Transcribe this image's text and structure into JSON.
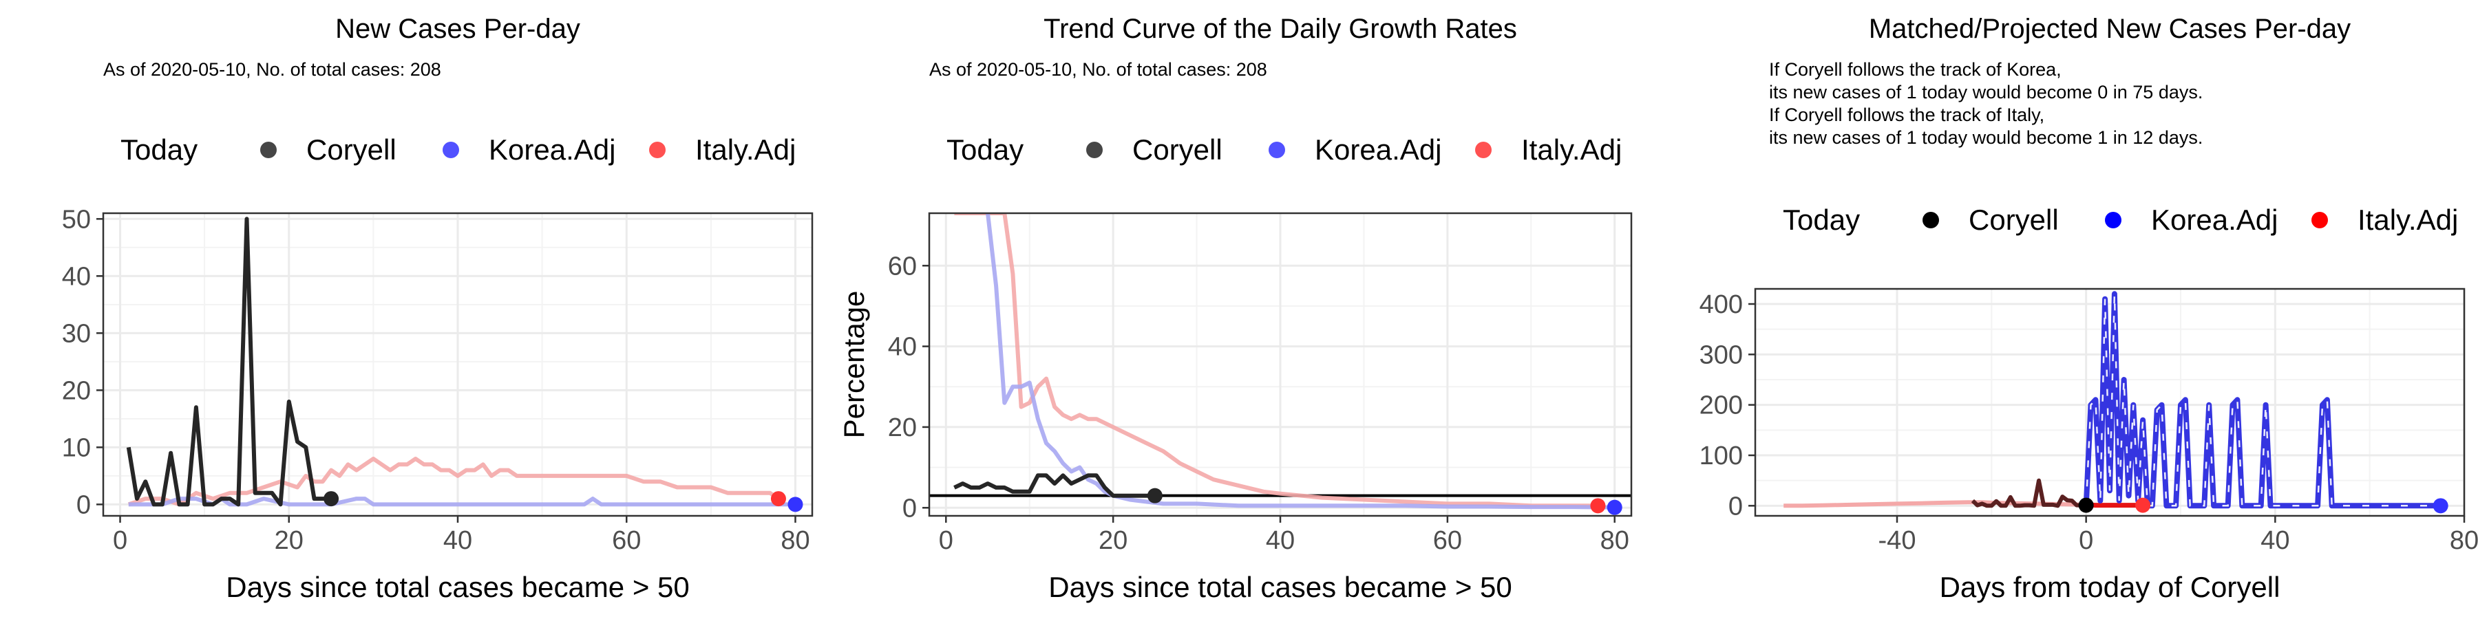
{
  "colors": {
    "coryell": "#262626",
    "korea_line": "#a7a7f2",
    "italy_line": "#f4a8a8",
    "korea_dot": "#3333ff",
    "italy_dot": "#ff3333",
    "korea_proj": "#3535e0",
    "italy_proj": "#e61414",
    "coryell_proj": "#5a2020",
    "grid": "#ebebeb"
  },
  "legend": {
    "today": "Today",
    "coryell": "Coryell",
    "korea": "Korea.Adj",
    "italy": "Italy.Adj"
  },
  "chart_data": [
    {
      "type": "line",
      "title": "New Cases Per-day",
      "subtitle": "As of 2020-05-10, No. of total cases: 208",
      "xlabel": "Days since total cases became > 50",
      "ylabel": "",
      "xlim": [
        -2,
        82
      ],
      "ylim": [
        -2,
        51
      ],
      "xticks": [
        0,
        20,
        40,
        60,
        80
      ],
      "yticks": [
        0,
        10,
        20,
        30,
        40,
        50
      ],
      "grid": true,
      "legend_position": "top",
      "series": [
        {
          "name": "Italy.Adj",
          "x": [
            1,
            3,
            5,
            7,
            9,
            11,
            13,
            15,
            17,
            19,
            21,
            22,
            23,
            24,
            25,
            26,
            27,
            28,
            29,
            30,
            31,
            32,
            33,
            34,
            35,
            36,
            37,
            38,
            39,
            40,
            41,
            42,
            43,
            44,
            45,
            46,
            47,
            48,
            50,
            52,
            54,
            56,
            58,
            60,
            62,
            64,
            66,
            68,
            70,
            72,
            74,
            76,
            77,
            78
          ],
          "y": [
            0,
            1,
            1,
            0,
            2,
            1,
            2,
            2,
            3,
            4,
            3,
            5,
            4,
            4,
            6,
            5,
            7,
            6,
            7,
            8,
            7,
            6,
            7,
            7,
            8,
            7,
            7,
            6,
            6,
            5,
            6,
            6,
            7,
            5,
            6,
            6,
            5,
            5,
            5,
            5,
            5,
            5,
            5,
            5,
            4,
            4,
            3,
            3,
            3,
            2,
            2,
            2,
            2,
            1
          ]
        },
        {
          "name": "Korea.Adj",
          "x": [
            1,
            5,
            7,
            9,
            11,
            12,
            13,
            15,
            17,
            20,
            25,
            28,
            29,
            30,
            35,
            40,
            45,
            50,
            55,
            56,
            57,
            60,
            65,
            70,
            75,
            78,
            80
          ],
          "y": [
            0,
            0,
            1,
            1,
            0,
            1,
            0,
            0,
            1,
            0,
            0,
            1,
            1,
            0,
            0,
            0,
            0,
            0,
            0,
            1,
            0,
            0,
            0,
            0,
            0,
            0,
            0
          ]
        },
        {
          "name": "Coryell",
          "x": [
            1,
            2,
            3,
            4,
            5,
            6,
            7,
            8,
            9,
            10,
            11,
            12,
            13,
            14,
            15,
            16,
            17,
            18,
            19,
            20,
            21,
            22,
            23,
            24,
            25
          ],
          "y": [
            10,
            1,
            4,
            0,
            0,
            9,
            0,
            0,
            17,
            0,
            0,
            1,
            1,
            0,
            50,
            2,
            2,
            2,
            0,
            18,
            11,
            10,
            1,
            1,
            1
          ]
        }
      ],
      "today_points": [
        {
          "name": "Coryell",
          "x": 25,
          "y": 1
        },
        {
          "name": "Italy.Adj",
          "x": 78,
          "y": 1
        },
        {
          "name": "Korea.Adj",
          "x": 80,
          "y": 0
        }
      ]
    },
    {
      "type": "line",
      "title": "Trend Curve of the Daily Growth Rates",
      "subtitle": "As of 2020-05-10, No. of total cases: 208",
      "xlabel": "Days since total cases became > 50",
      "ylabel": "Percentage",
      "xlim": [
        -2,
        82
      ],
      "ylim": [
        -2,
        73
      ],
      "xticks": [
        0,
        20,
        40,
        60,
        80
      ],
      "yticks": [
        0,
        20,
        40,
        60
      ],
      "hline": 3,
      "grid": true,
      "legend_position": "top",
      "series": [
        {
          "name": "Italy.Adj",
          "x": [
            1,
            6,
            7,
            8,
            9,
            10,
            11,
            12,
            13,
            14,
            15,
            16,
            17,
            18,
            19,
            20,
            22,
            24,
            26,
            28,
            30,
            32,
            34,
            36,
            38,
            40,
            45,
            50,
            55,
            60,
            65,
            70,
            75,
            78
          ],
          "y": [
            73,
            73,
            73,
            58,
            25,
            26,
            30,
            32,
            25,
            23,
            22,
            23,
            22,
            22,
            21,
            20,
            18,
            16,
            14,
            11,
            9,
            7,
            6,
            5,
            4,
            3.5,
            2.5,
            2,
            1.5,
            1,
            1,
            0.5,
            0.5,
            0.5
          ]
        },
        {
          "name": "Korea.Adj",
          "x": [
            5,
            6,
            7,
            8,
            9,
            10,
            11,
            12,
            13,
            14,
            15,
            16,
            17,
            18,
            19,
            20,
            22,
            24,
            26,
            28,
            30,
            35,
            40,
            45,
            50,
            55,
            60,
            65,
            70,
            75,
            80
          ],
          "y": [
            73,
            55,
            26,
            30,
            30,
            31,
            22,
            16,
            14,
            11,
            9,
            10,
            7,
            6,
            4,
            3,
            2,
            1.5,
            1,
            1,
            1,
            0.5,
            0.5,
            0.5,
            0.5,
            0.5,
            0.3,
            0.3,
            0.2,
            0.2,
            0.1
          ]
        },
        {
          "name": "Coryell",
          "x": [
            1,
            2,
            3,
            4,
            5,
            6,
            7,
            8,
            9,
            10,
            11,
            12,
            13,
            14,
            15,
            16,
            17,
            18,
            19,
            20,
            21,
            22,
            23,
            24,
            25
          ],
          "y": [
            5,
            6,
            5,
            5,
            6,
            5,
            5,
            4,
            4,
            4,
            8,
            8,
            6,
            8,
            6,
            7,
            8,
            8,
            5,
            3,
            3,
            3,
            3,
            3,
            3
          ]
        }
      ],
      "today_points": [
        {
          "name": "Coryell",
          "x": 25,
          "y": 3
        },
        {
          "name": "Italy.Adj",
          "x": 78,
          "y": 0.5
        },
        {
          "name": "Korea.Adj",
          "x": 80,
          "y": 0.1
        }
      ]
    },
    {
      "type": "line",
      "title": "Matched/Projected New Cases Per-day",
      "annotations": [
        "If Coryell follows the track of Korea,",
        "its new cases of 1 today would become 0 in 75 days.",
        "If Coryell follows the track of Italy,",
        "its new cases of 1 today would become 1 in 12 days."
      ],
      "xlabel": "Days from today of Coryell",
      "ylabel": "",
      "xlim": [
        -70,
        80
      ],
      "ylim": [
        -20,
        430
      ],
      "xticks": [
        -40,
        0,
        40,
        80
      ],
      "yticks": [
        0,
        100,
        200,
        300,
        400
      ],
      "grid": true,
      "legend_position": "top",
      "series": [
        {
          "name": "Italy.Adj",
          "x": [
            -64,
            -60,
            -55,
            -50,
            -45,
            -40,
            -35,
            -30,
            -25,
            -22,
            -20,
            -15,
            -10,
            -5,
            0,
            2,
            4,
            6,
            8,
            10,
            12
          ],
          "y": [
            0,
            0,
            1,
            2,
            3,
            4,
            5,
            6,
            7,
            7,
            6,
            5,
            4,
            3,
            2,
            1,
            1,
            1,
            1,
            1,
            1
          ]
        },
        {
          "name": "Korea.Adj",
          "x": [
            0,
            1,
            2,
            3,
            4,
            5,
            6,
            7,
            8,
            9,
            10,
            11,
            12,
            13,
            14,
            15,
            16,
            17,
            18,
            19,
            20,
            21,
            22,
            23,
            24,
            25,
            26,
            27,
            28,
            29,
            30,
            31,
            32,
            33,
            34,
            35,
            36,
            37,
            38,
            39,
            40,
            41,
            42,
            43,
            44,
            45,
            46,
            47,
            48,
            49,
            50,
            51,
            52,
            53,
            54,
            55,
            56,
            60,
            65,
            70,
            75
          ],
          "y": [
            0,
            200,
            210,
            10,
            410,
            30,
            420,
            10,
            250,
            20,
            200,
            10,
            170,
            0,
            0,
            190,
            200,
            0,
            0,
            0,
            200,
            210,
            0,
            0,
            0,
            0,
            200,
            0,
            0,
            0,
            0,
            200,
            210,
            0,
            0,
            0,
            0,
            0,
            200,
            0,
            0,
            0,
            0,
            0,
            0,
            0,
            0,
            0,
            0,
            0,
            200,
            210,
            0,
            0,
            0,
            0,
            0,
            0,
            0,
            0,
            0
          ]
        },
        {
          "name": "Coryell",
          "x": [
            -24,
            -23,
            -22,
            -21,
            -20,
            -19,
            -18,
            -17,
            -16,
            -15,
            -14,
            -13,
            -12,
            -11,
            -10,
            -9,
            -8,
            -7,
            -6,
            -5,
            -4,
            -3,
            -2,
            -1,
            0
          ],
          "y": [
            10,
            1,
            4,
            0,
            0,
            9,
            0,
            0,
            17,
            0,
            0,
            1,
            1,
            0,
            50,
            2,
            2,
            2,
            0,
            18,
            11,
            10,
            1,
            1,
            1
          ]
        }
      ],
      "today_points": [
        {
          "name": "Coryell",
          "x": 0,
          "y": 1
        },
        {
          "name": "Italy.Adj",
          "x": 12,
          "y": 1
        },
        {
          "name": "Korea.Adj",
          "x": 75,
          "y": 0
        }
      ]
    }
  ]
}
